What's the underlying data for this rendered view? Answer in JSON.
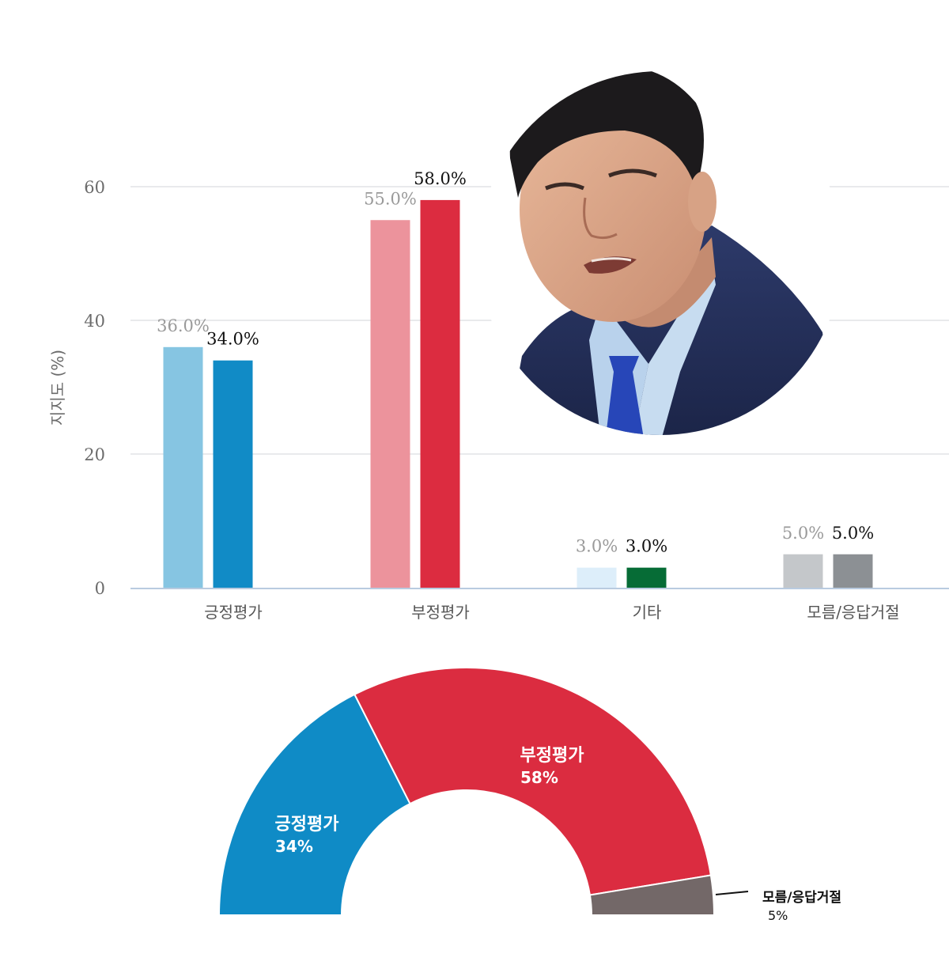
{
  "chart_data": [
    {
      "type": "bar",
      "ylabel": "지지도 (%)",
      "ylim": [
        0,
        60
      ],
      "yticks": [
        0,
        20,
        40,
        60
      ],
      "grid": true,
      "categories": [
        "긍정평가",
        "부정평가",
        "기타",
        "모름/응답거절"
      ],
      "series": [
        {
          "values": [
            36.0,
            55.0,
            3.0,
            5.0
          ],
          "labels": [
            "36.0%",
            "55.0%",
            "3.0%",
            "5.0%"
          ]
        },
        {
          "values": [
            34.0,
            58.0,
            3.0,
            5.0
          ],
          "labels": [
            "34.0%",
            "58.0%",
            "3.0%",
            "5.0%"
          ]
        }
      ],
      "colors": {
        "series1": [
          "#86c5e2",
          "#ec939c",
          "#ddeefa",
          "#c4c7ca"
        ],
        "series2": [
          "#118bc6",
          "#dc2c40",
          "#066c36",
          "#8c9094"
        ],
        "label1": "#9a9a9a",
        "label2": "#111111",
        "grid": "#e2e4e6",
        "axis": "#b9cbe0",
        "tick_text": "#6b6b6b"
      }
    },
    {
      "type": "pie",
      "style": "half-donut",
      "slices": [
        {
          "name": "긍정평가",
          "value": 34,
          "label": "34%",
          "color": "#0f8bc6"
        },
        {
          "name": "부정평가",
          "value": 58,
          "label": "58%",
          "color": "#db2c40"
        },
        {
          "name": "모름/응답거절",
          "value": 5,
          "label": "5%",
          "color": "#736868"
        }
      ]
    }
  ],
  "photo": {
    "name": "portrait-photo"
  }
}
